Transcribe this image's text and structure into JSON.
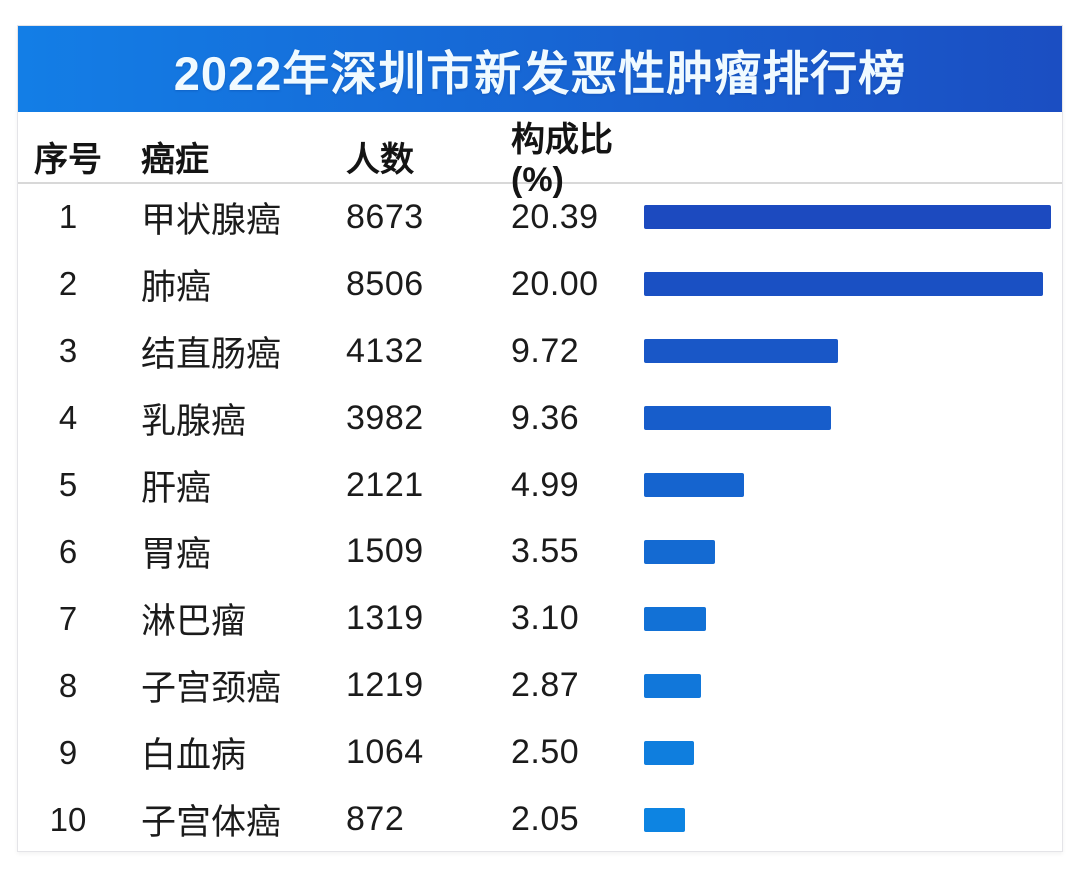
{
  "page": {
    "banner_title": "2022年深圳市新发恶性肿瘤排行榜"
  },
  "table": {
    "columns": [
      "序号",
      "癌症",
      "人数",
      "构成比(%)"
    ],
    "rows": [
      {
        "rank": "1",
        "cancer": "甲状腺癌",
        "count": "8673",
        "pct": "20.39"
      },
      {
        "rank": "2",
        "cancer": "肺癌",
        "count": "8506",
        "pct": "20.00"
      },
      {
        "rank": "3",
        "cancer": "结直肠癌",
        "count": "4132",
        "pct": "9.72"
      },
      {
        "rank": "4",
        "cancer": "乳腺癌",
        "count": "3982",
        "pct": "9.36"
      },
      {
        "rank": "5",
        "cancer": "肝癌",
        "count": "2121",
        "pct": "4.99"
      },
      {
        "rank": "6",
        "cancer": "胃癌",
        "count": "1509",
        "pct": "3.55"
      },
      {
        "rank": "7",
        "cancer": "淋巴瘤",
        "count": "1319",
        "pct": "3.10"
      },
      {
        "rank": "8",
        "cancer": "子宫颈癌",
        "count": "1219",
        "pct": "2.87"
      },
      {
        "rank": "9",
        "cancer": "白血病",
        "count": "1064",
        "pct": "2.50"
      },
      {
        "rank": "10",
        "cancer": "子宫体癌",
        "count": "872",
        "pct": "2.05"
      }
    ]
  },
  "colors": {
    "banner_gradient_left": "#137EE6",
    "banner_gradient_right": "#1B4EC2",
    "title_text": "#F0FAFF",
    "header_separator": "#D8D8D8",
    "bar_colors": [
      "#1C4ABF",
      "#1A50C3",
      "#1957C7",
      "#175DCB",
      "#1564CF",
      "#146AD2",
      "#1271D6",
      "#1177DA",
      "#0F7EDE",
      "#0D84E2"
    ]
  },
  "chart_data": {
    "type": "bar",
    "orientation": "horizontal",
    "title": "2022年深圳市新发恶性肿瘤排行榜",
    "categories": [
      "甲状腺癌",
      "肺癌",
      "结直肠癌",
      "乳腺癌",
      "肝癌",
      "胃癌",
      "淋巴瘤",
      "子宫颈癌",
      "白血病",
      "子宫体癌"
    ],
    "series": [
      {
        "name": "人数",
        "values": [
          8673,
          8506,
          4132,
          3982,
          2121,
          1509,
          1319,
          1219,
          1064,
          872
        ]
      },
      {
        "name": "构成比(%)",
        "values": [
          20.39,
          20.0,
          9.72,
          9.36,
          4.99,
          3.55,
          3.1,
          2.87,
          2.5,
          2.05
        ]
      }
    ],
    "bar_value_basis": "构成比(%)",
    "xlim": [
      0,
      20.39
    ],
    "grid": false,
    "legend": false
  }
}
